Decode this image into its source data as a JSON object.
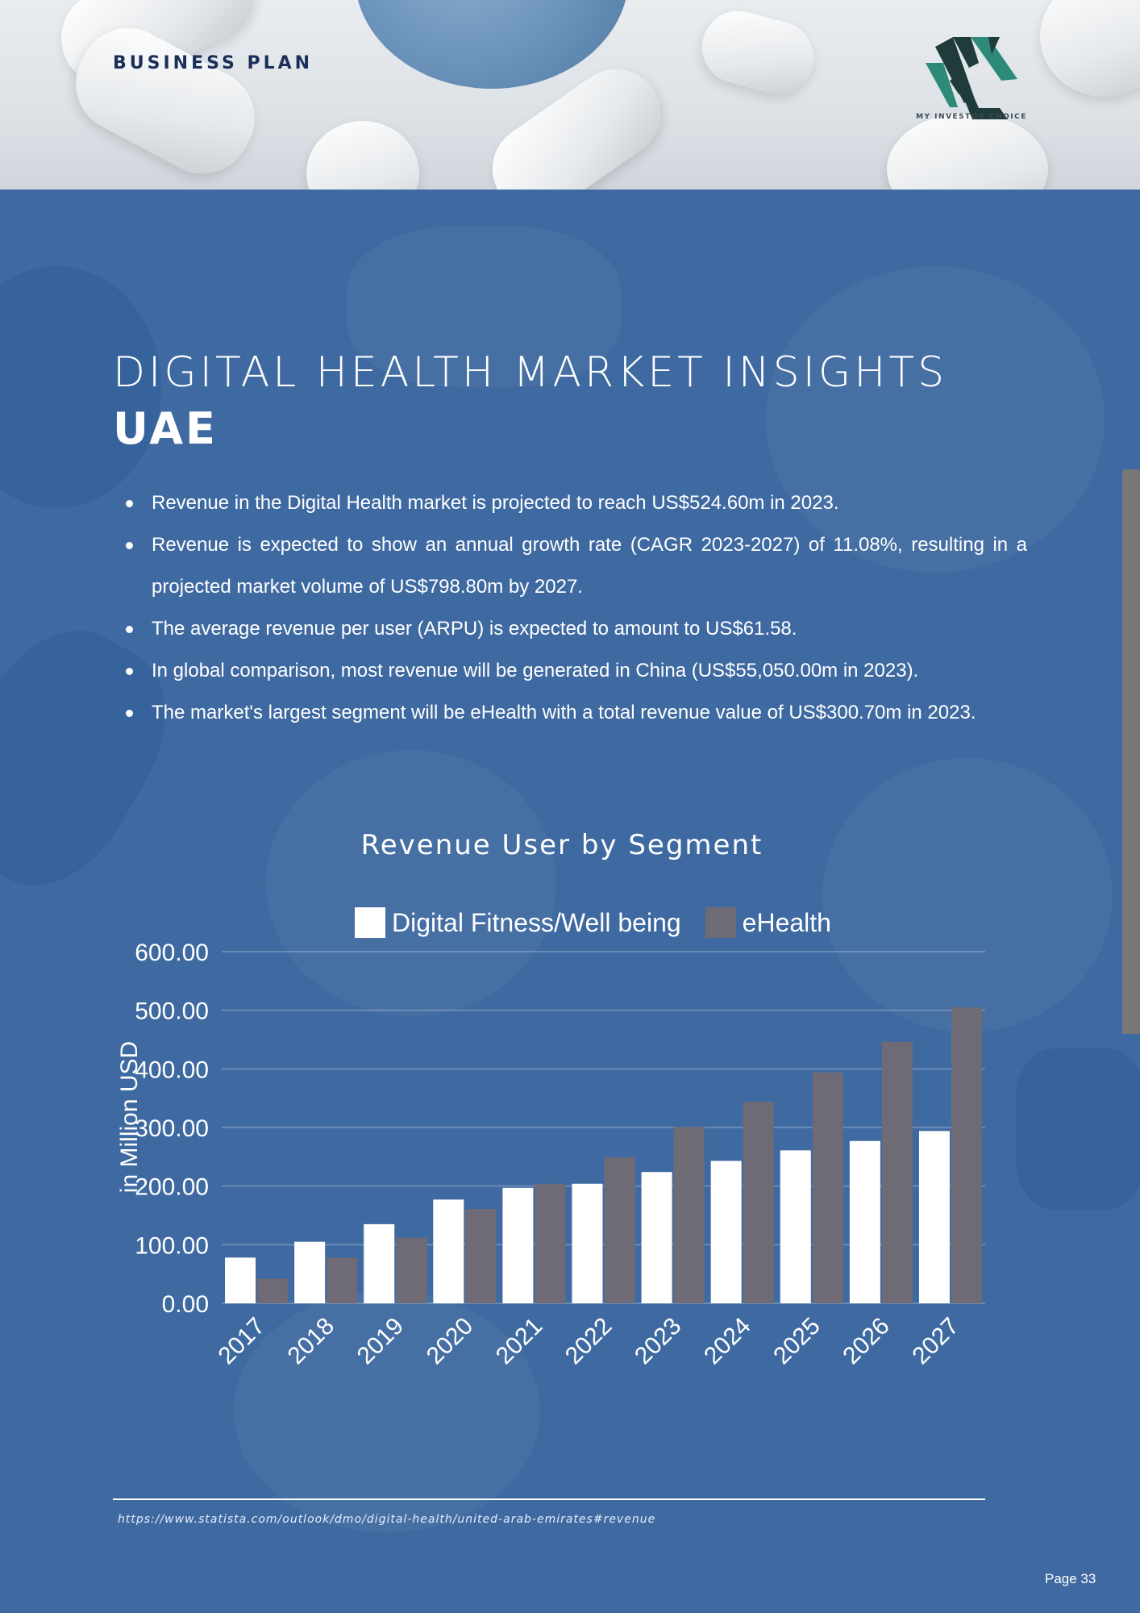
{
  "header": {
    "label": "BUSINESS PLAN",
    "logo_text": "MY INVESTOR CHOICE"
  },
  "title": "DIGITAL HEALTH MARKET INSIGHTS",
  "subtitle": "UAE",
  "bullets": [
    "Revenue in the Digital Health market is projected to reach US$524.60m in 2023.",
    "Revenue is expected to show an annual growth rate (CAGR 2023-2027) of 11.08%, resulting in a projected market volume of US$798.80m by 2027.",
    "The average revenue per user (ARPU) is expected to amount to US$61.58.",
    "In global comparison, most revenue will be generated in China (US$55,050.00m in 2023).",
    "The market's largest segment will be eHealth with a total revenue value of US$300.70m in 2023."
  ],
  "chart_data": {
    "type": "bar",
    "title": "Revenue User by Segment",
    "ylabel": "in Million USD",
    "xlabel": "",
    "ylim": [
      0,
      600
    ],
    "yticks": [
      "0.00",
      "100.00",
      "200.00",
      "300.00",
      "400.00",
      "500.00",
      "600.00"
    ],
    "categories": [
      "2017",
      "2018",
      "2019",
      "2020",
      "2021",
      "2022",
      "2023",
      "2024",
      "2025",
      "2026",
      "2027"
    ],
    "series": [
      {
        "name": "Digital Fitness/Well being",
        "color": "#ffffff",
        "values": [
          78,
          105,
          135,
          177,
          197,
          204,
          224,
          243,
          261,
          277,
          294
        ]
      },
      {
        "name": "eHealth",
        "color": "#6f6b76",
        "values": [
          42,
          78,
          112,
          161,
          204,
          249,
          301,
          344,
          394,
          446,
          505
        ]
      }
    ],
    "grid": true,
    "legend": "top"
  },
  "footer": {
    "source": "https://www.statista.com/outlook/dmo/digital-health/united-arab-emirates#revenue",
    "page": "Page 33"
  },
  "colors": {
    "background": "#3f6aa1",
    "logo_dark": "#1f3b3a",
    "logo_teal": "#2e8a78"
  }
}
